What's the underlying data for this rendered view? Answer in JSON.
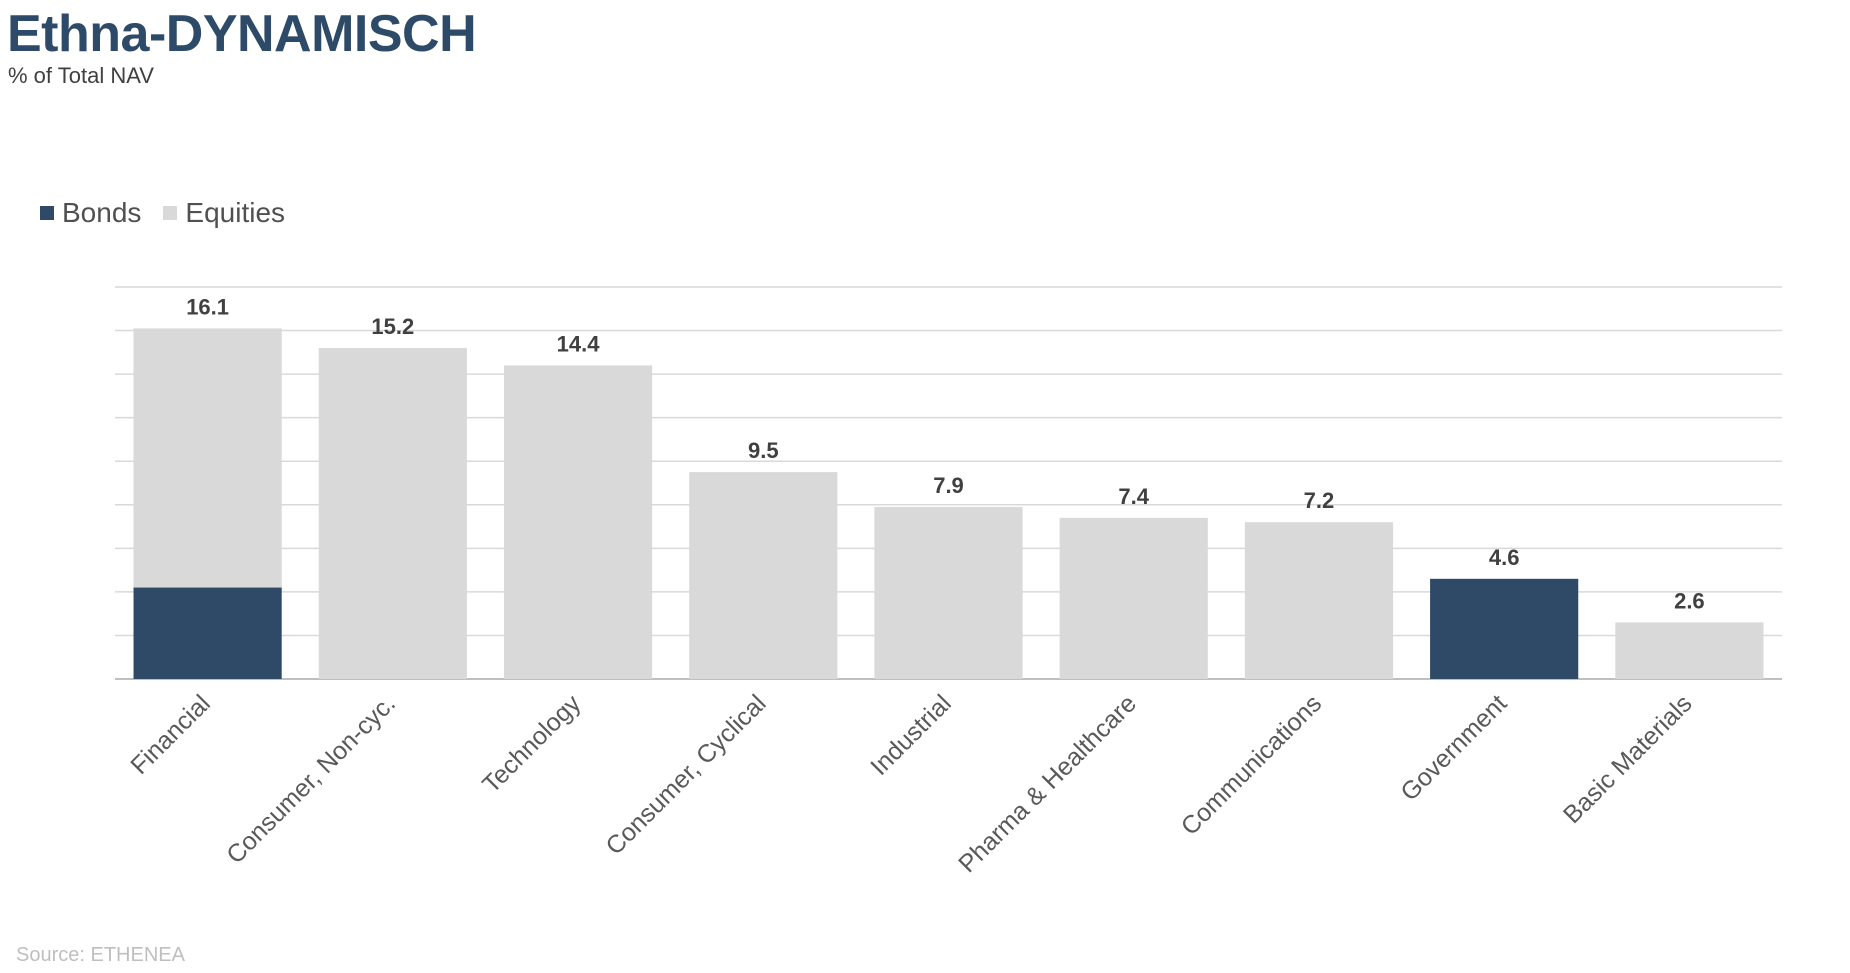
{
  "header": {
    "title": "Ethna-DYNAMISCH",
    "subtitle": "% of Total NAV"
  },
  "footer": {
    "source": "Source: ETHENEA"
  },
  "colors": {
    "bonds": "#2f4a67",
    "equities": "#d9d9d9",
    "grid": "#d9d9d9"
  },
  "chart_data": {
    "type": "bar",
    "stacked": true,
    "categories": [
      "Financial",
      "Consumer, Non-cyc.",
      "Technology",
      "Consumer, Cyclical",
      "Industrial",
      "Pharma & Healthcare",
      "Communications",
      "Government",
      "Basic Materials"
    ],
    "series": [
      {
        "name": "Bonds",
        "values": [
          4.2,
          0,
          0,
          0,
          0,
          0,
          0,
          4.6,
          0
        ]
      },
      {
        "name": "Equities",
        "values": [
          11.9,
          15.2,
          14.4,
          9.5,
          7.9,
          7.4,
          7.2,
          0,
          2.6
        ]
      }
    ],
    "totals": [
      "16.1",
      "15.2",
      "14.4",
      "9.5",
      "7.9",
      "7.4",
      "7.2",
      "4.6",
      "2.6"
    ],
    "title": "Ethna-DYNAMISCH",
    "subtitle": "% of Total NAV",
    "xlabel": "",
    "ylabel": "",
    "ylim": [
      0,
      18
    ],
    "grid": true,
    "legend": "top-left"
  }
}
